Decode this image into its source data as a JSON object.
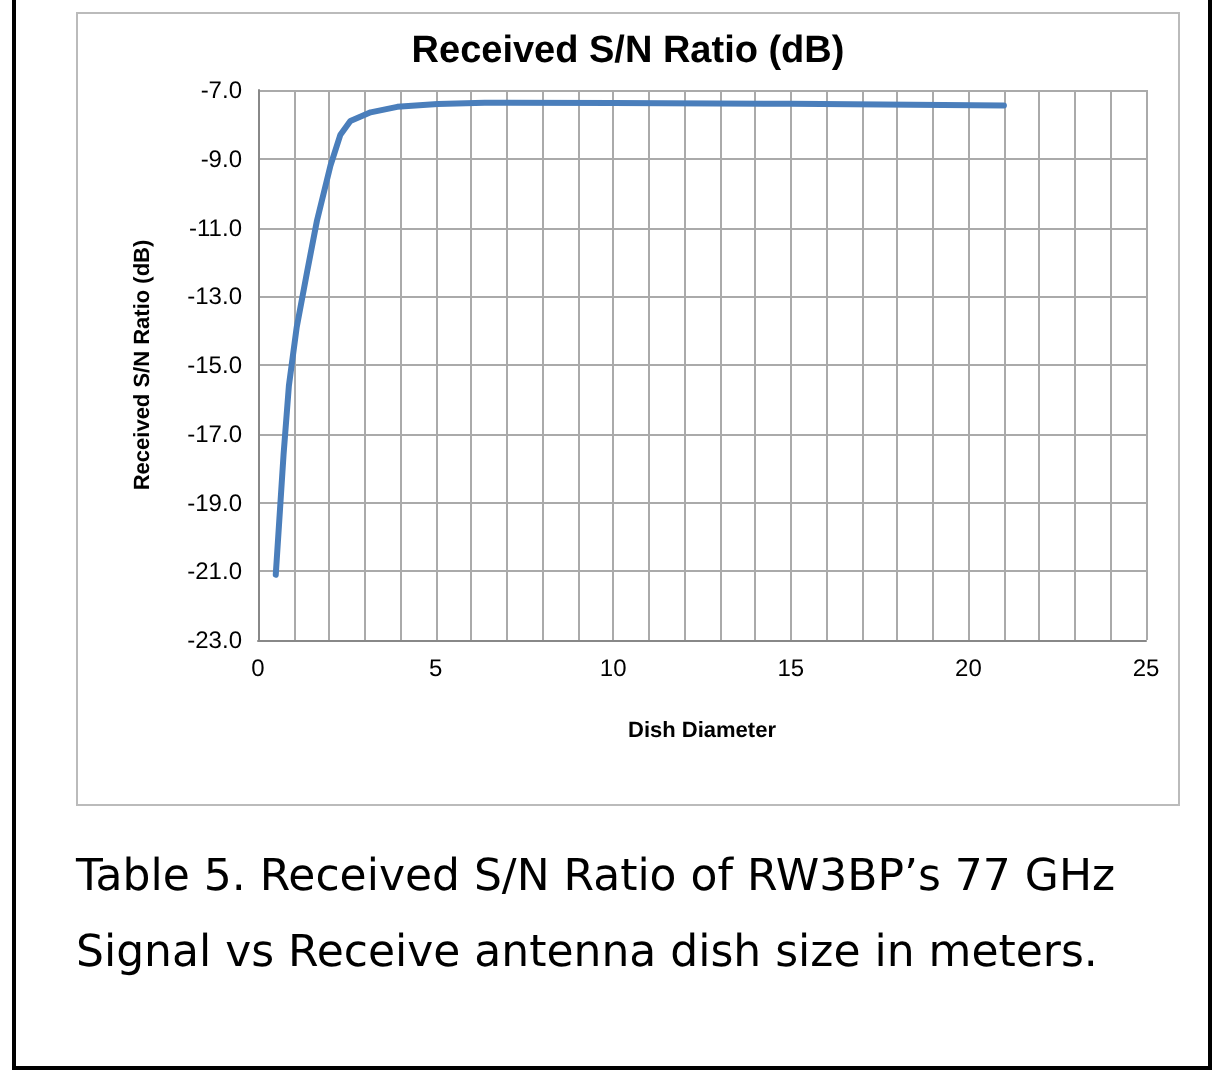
{
  "chart_data": {
    "type": "line",
    "title": "Received S/N Ratio (dB)",
    "xlabel": "Dish Diameter",
    "ylabel": "Received S/N Ratio (dB)",
    "x": [
      0.5,
      0.72,
      0.87,
      1.09,
      1.38,
      1.66,
      2.04,
      2.32,
      2.6,
      3.17,
      3.92,
      5.06,
      6.38,
      10,
      15,
      21
    ],
    "series": [
      {
        "color": "#4a7ebb",
        "values": [
          -21.1,
          -17.6,
          -15.6,
          -13.9,
          -12.3,
          -10.8,
          -9.2,
          -8.3,
          -7.9,
          -7.65,
          -7.49,
          -7.41,
          -7.37,
          -7.38,
          -7.4,
          -7.45
        ]
      }
    ],
    "xlim": [
      0,
      25
    ],
    "xticks": [
      0,
      {
        "value": 1,
        "label": null
      },
      {
        "value": 2,
        "label": null
      },
      {
        "value": 3,
        "label": null
      },
      {
        "value": 4,
        "label": null
      },
      5,
      {
        "value": 6,
        "label": null
      },
      {
        "value": 7,
        "label": null
      },
      {
        "value": 8,
        "label": null
      },
      {
        "value": 9,
        "label": null
      },
      10,
      {
        "value": 11,
        "label": null
      },
      {
        "value": 12,
        "label": null
      },
      {
        "value": 13,
        "label": null
      },
      {
        "value": 14,
        "label": null
      },
      15,
      {
        "value": 16,
        "label": null
      },
      {
        "value": 17,
        "label": null
      },
      {
        "value": 18,
        "label": null
      },
      {
        "value": 19,
        "label": null
      },
      20,
      {
        "value": 21,
        "label": null
      },
      {
        "value": 22,
        "label": null
      },
      {
        "value": 23,
        "label": null
      },
      {
        "value": 24,
        "label": null
      },
      25
    ],
    "ylim": [
      -23,
      -7
    ],
    "yticks": [
      {
        "value": -23,
        "label": "-23.0"
      },
      {
        "value": -21,
        "label": "-21.0"
      },
      {
        "value": -19,
        "label": "-19.0"
      },
      {
        "value": -17,
        "label": "-17.0"
      },
      {
        "value": -15,
        "label": "-15.0"
      },
      {
        "value": -13,
        "label": "-13.0"
      },
      {
        "value": -11,
        "label": "-11.0"
      },
      {
        "value": -9,
        "label": "-9.0"
      },
      {
        "value": -7,
        "label": "-7.0"
      }
    ],
    "grid": true,
    "marker": "none",
    "line_style": "solid",
    "annotations": [
      "Table 5. Received S/N Ratio of RW3BP’s 77 GHz Signal vs Receive antenna dish size in meters."
    ]
  }
}
